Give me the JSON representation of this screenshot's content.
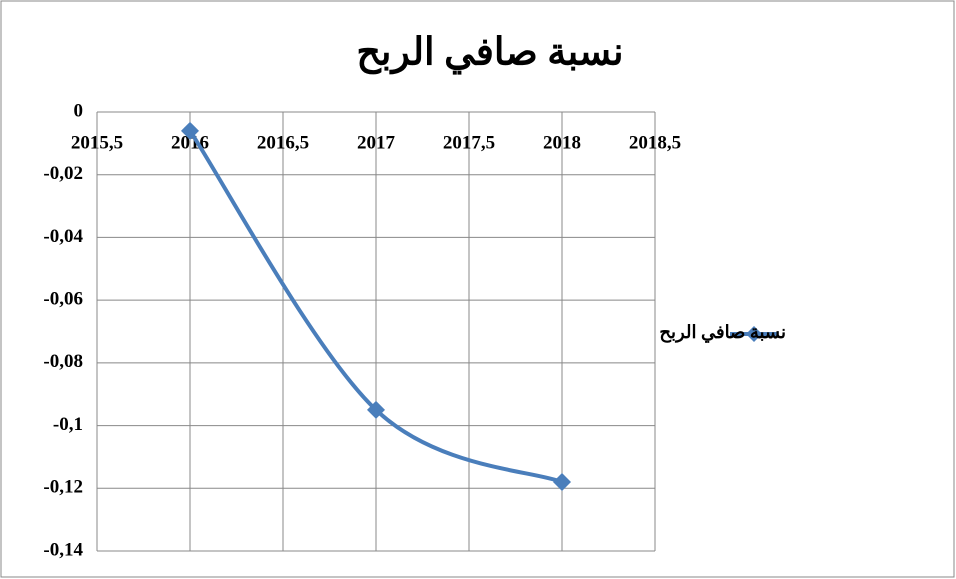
{
  "chart_data": {
    "type": "line",
    "title": "نسبة صافي الربح",
    "x": [
      2016,
      2017,
      2018
    ],
    "series": [
      {
        "name": "نسبة صافي الربح",
        "color": "#4a7ebb",
        "values": [
          -0.006,
          -0.095,
          -0.118
        ]
      }
    ],
    "xlim": [
      2015.5,
      2018.5
    ],
    "xticks": [
      {
        "value": 2015.5,
        "label": "2015,5"
      },
      2016,
      {
        "value": 2016.5,
        "label": "2016,5"
      },
      2017,
      {
        "value": 2017.5,
        "label": "2017,5"
      },
      2018,
      {
        "value": 2018.5,
        "label": "2018,5"
      }
    ],
    "ylim": [
      -0.14,
      0
    ],
    "yticks": [
      0,
      {
        "value": -0.02,
        "label": "-0,02"
      },
      {
        "value": -0.04,
        "label": "-0,04"
      },
      {
        "value": -0.06,
        "label": "-0,06"
      },
      {
        "value": -0.08,
        "label": "-0,08"
      },
      {
        "value": -0.1,
        "label": "-0,1"
      },
      {
        "value": -0.12,
        "label": "-0,12"
      },
      {
        "value": -0.14,
        "label": "-0,14"
      }
    ],
    "grid": true,
    "smooth": true,
    "legend": "right"
  }
}
